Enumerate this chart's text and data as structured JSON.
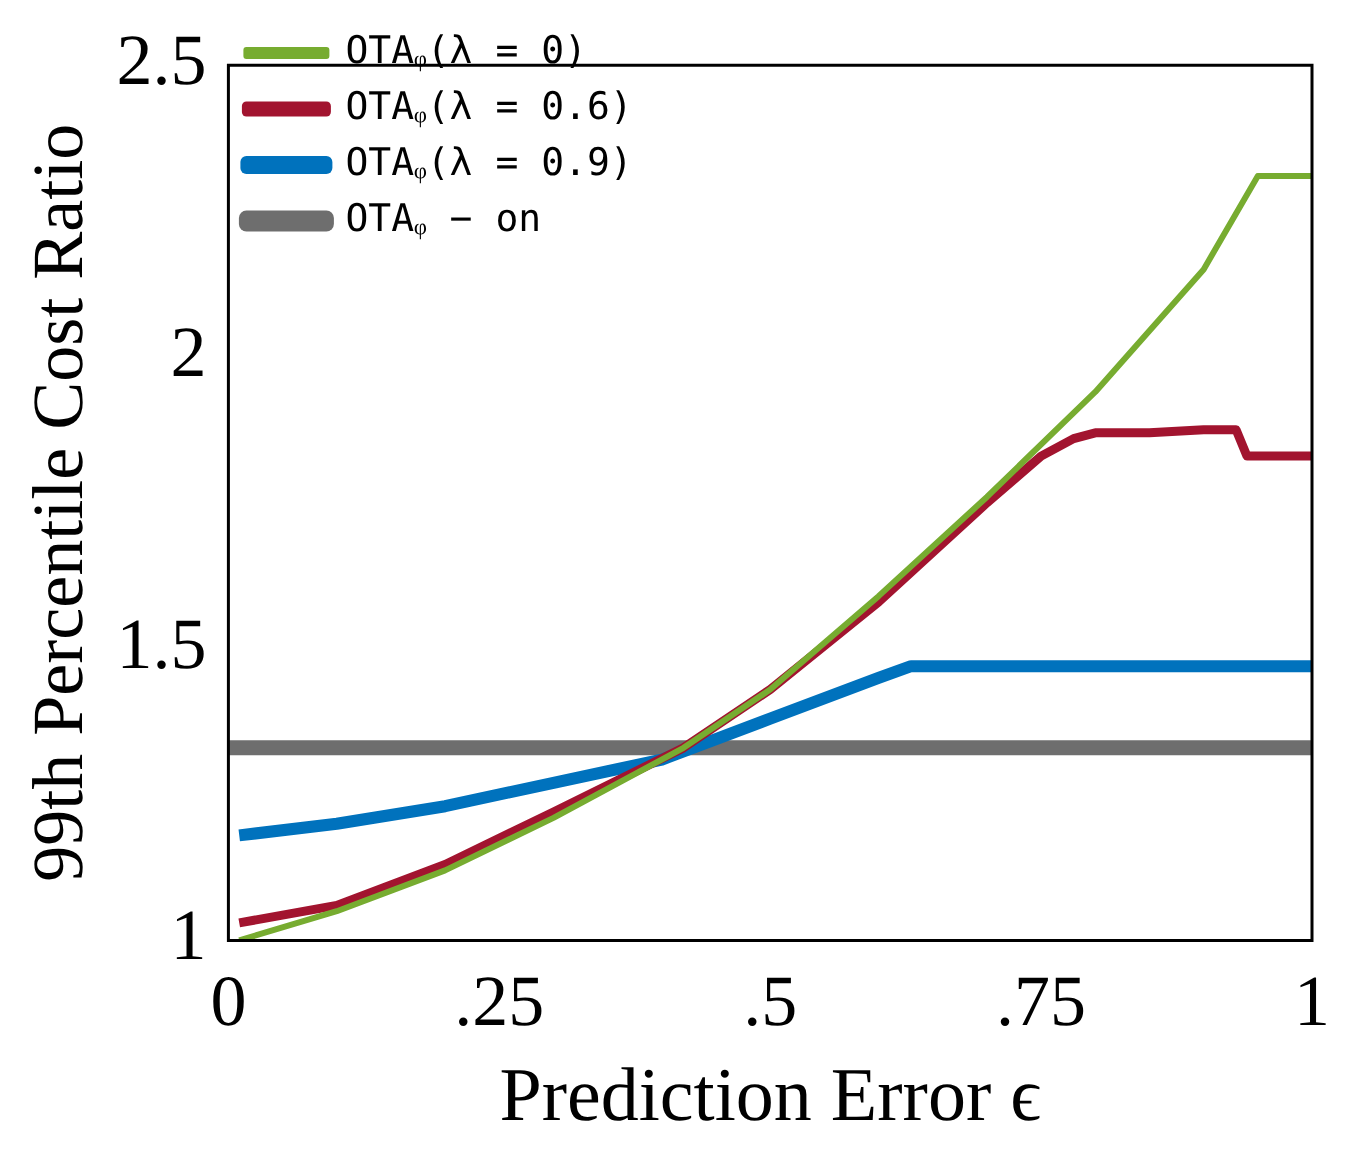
{
  "chart_data": {
    "type": "line",
    "xlabel": "Prediction Error ϵ",
    "ylabel": "99th Percentile Cost Ratio",
    "xlim": [
      0,
      1
    ],
    "xticks": [
      0,
      {
        "value": 0.25,
        "label": ".25"
      },
      {
        "value": 0.5,
        "label": ".5"
      },
      {
        "value": 0.75,
        "label": ".75"
      },
      1
    ],
    "ylim": [
      1,
      2.5
    ],
    "yticks": [
      1,
      1.5,
      2,
      2.5
    ],
    "grid": false,
    "legend": "top left",
    "marker": "none",
    "line_style": "solid",
    "series": [
      {
        "name": "OTAᵩ(λ = 0)",
        "color": "#77ac30",
        "x": [
          0.01,
          0.1,
          0.2,
          0.3,
          0.42,
          0.5,
          0.6,
          0.7,
          0.8,
          0.9,
          0.95,
          1.0
        ],
        "values": [
          1.0,
          1.05,
          1.12,
          1.21,
          1.33,
          1.43,
          1.59,
          1.76,
          1.94,
          2.15,
          2.31,
          2.31
        ]
      },
      {
        "name": "OTAᵩ(λ = 0.6)",
        "color": "#a2142f",
        "x": [
          0.01,
          0.1,
          0.2,
          0.3,
          0.42,
          0.5,
          0.6,
          0.7,
          0.75,
          0.78,
          0.8,
          0.85,
          0.9,
          0.93,
          0.94,
          1.0
        ],
        "values": [
          1.03,
          1.06,
          1.13,
          1.22,
          1.33,
          1.43,
          1.58,
          1.75,
          1.83,
          1.86,
          1.87,
          1.87,
          1.875,
          1.875,
          1.83,
          1.83
        ]
      },
      {
        "name": "OTAᵩ(λ = 0.9)",
        "color": "#0072bd",
        "x": [
          0.01,
          0.1,
          0.2,
          0.3,
          0.4,
          0.5,
          0.6,
          0.63,
          0.7,
          1.0
        ],
        "values": [
          1.18,
          1.2,
          1.23,
          1.27,
          1.31,
          1.38,
          1.45,
          1.47,
          1.47,
          1.47
        ]
      },
      {
        "name": "OTAᵩ − on",
        "color": "#6e6e6e",
        "x": [
          0,
          1
        ],
        "values": [
          1.33,
          1.33
        ]
      }
    ]
  }
}
